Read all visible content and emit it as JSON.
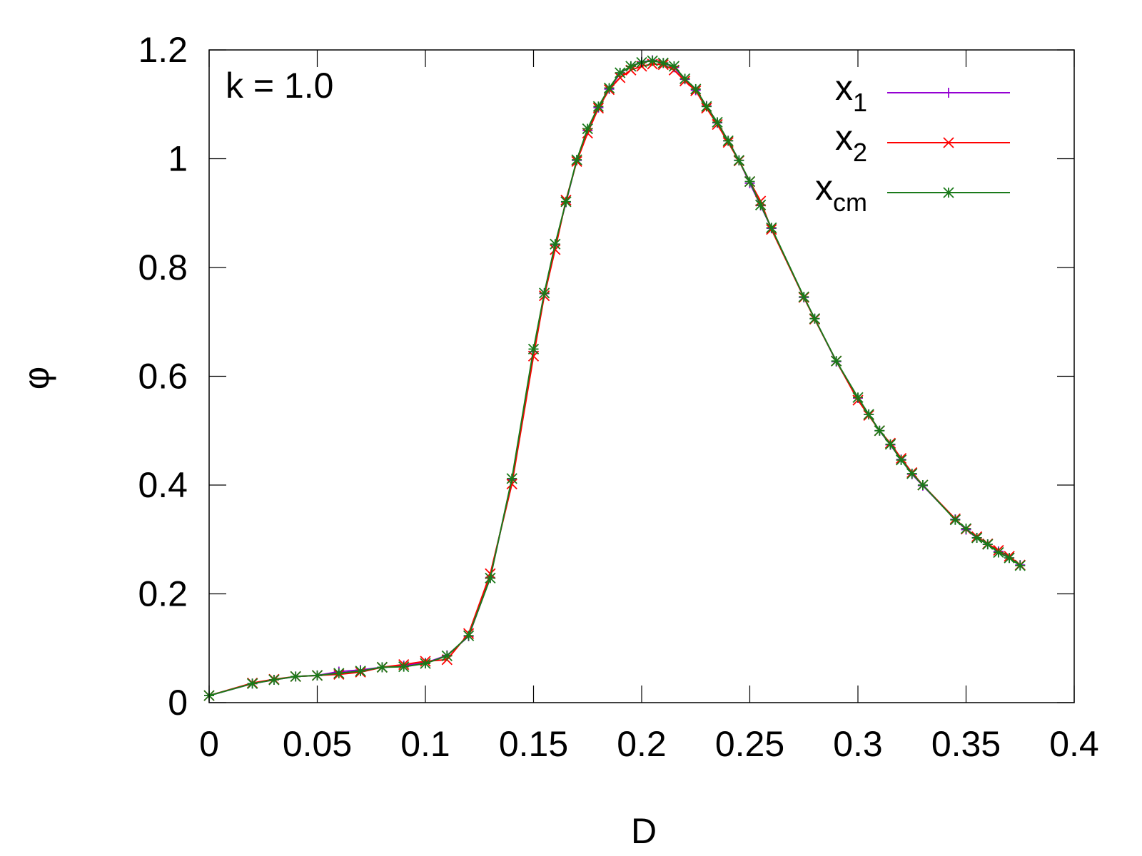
{
  "chart_data": {
    "type": "line",
    "xlabel": "D",
    "ylabel": "φ",
    "annotation": "k = 1.0",
    "xlim": [
      0,
      0.4
    ],
    "ylim": [
      0,
      1.2
    ],
    "xticks": [
      "0",
      "0.05",
      "0.1",
      "0.15",
      "0.2",
      "0.25",
      "0.3",
      "0.35",
      "0.4"
    ],
    "yticks": [
      "0",
      "0.2",
      "0.4",
      "0.6",
      "0.8",
      "1",
      "1.2"
    ],
    "grid": false,
    "legend_position": "top-right",
    "series": [
      {
        "name": "x",
        "subscript": "1",
        "color": "#9400d3",
        "marker": "plus",
        "x": [
          0.0,
          0.02,
          0.03,
          0.04,
          0.05,
          0.06,
          0.07,
          0.08,
          0.09,
          0.1,
          0.11,
          0.12,
          0.13,
          0.14,
          0.15,
          0.155,
          0.16,
          0.165,
          0.17,
          0.175,
          0.18,
          0.185,
          0.19,
          0.195,
          0.2,
          0.205,
          0.21,
          0.215,
          0.22,
          0.225,
          0.23,
          0.235,
          0.24,
          0.245,
          0.25,
          0.255,
          0.26,
          0.275,
          0.28,
          0.29,
          0.3,
          0.305,
          0.31,
          0.315,
          0.32,
          0.325,
          0.33,
          0.345,
          0.35,
          0.355,
          0.36,
          0.365,
          0.37,
          0.375
        ],
        "y": [
          0.013,
          0.035,
          0.042,
          0.048,
          0.05,
          0.057,
          0.06,
          0.065,
          0.068,
          0.073,
          0.087,
          0.122,
          0.23,
          0.41,
          0.645,
          0.752,
          0.842,
          0.92,
          0.997,
          1.052,
          1.094,
          1.128,
          1.157,
          1.17,
          1.178,
          1.181,
          1.176,
          1.168,
          1.146,
          1.126,
          1.097,
          1.066,
          1.033,
          0.997,
          0.955,
          0.914,
          0.872,
          0.745,
          0.706,
          0.627,
          0.56,
          0.53,
          0.5,
          0.474,
          0.447,
          0.42,
          0.399,
          0.337,
          0.318,
          0.303,
          0.291,
          0.278,
          0.266,
          0.253
        ]
      },
      {
        "name": "x",
        "subscript": "2",
        "color": "#ff0000",
        "marker": "cross",
        "x": [
          0.0,
          0.02,
          0.03,
          0.04,
          0.05,
          0.06,
          0.07,
          0.08,
          0.09,
          0.1,
          0.11,
          0.12,
          0.13,
          0.14,
          0.15,
          0.155,
          0.16,
          0.165,
          0.17,
          0.175,
          0.18,
          0.185,
          0.19,
          0.195,
          0.2,
          0.205,
          0.21,
          0.215,
          0.22,
          0.225,
          0.23,
          0.235,
          0.24,
          0.245,
          0.25,
          0.255,
          0.26,
          0.275,
          0.28,
          0.29,
          0.3,
          0.305,
          0.31,
          0.315,
          0.32,
          0.325,
          0.33,
          0.345,
          0.35,
          0.355,
          0.36,
          0.365,
          0.37,
          0.375
        ],
        "y": [
          0.013,
          0.036,
          0.043,
          0.048,
          0.05,
          0.052,
          0.056,
          0.065,
          0.07,
          0.076,
          0.079,
          0.127,
          0.237,
          0.402,
          0.637,
          0.748,
          0.833,
          0.924,
          0.995,
          1.047,
          1.093,
          1.127,
          1.149,
          1.163,
          1.17,
          1.174,
          1.173,
          1.163,
          1.143,
          1.125,
          1.093,
          1.063,
          1.03,
          0.996,
          0.958,
          0.922,
          0.87,
          0.745,
          0.705,
          0.628,
          0.556,
          0.528,
          0.5,
          0.477,
          0.449,
          0.423,
          0.4,
          0.338,
          0.319,
          0.305,
          0.292,
          0.28,
          0.269,
          0.253
        ]
      },
      {
        "name": "x",
        "subscript": "cm",
        "color": "#1a7a1a",
        "marker": "star",
        "x": [
          0.0,
          0.02,
          0.03,
          0.04,
          0.05,
          0.06,
          0.07,
          0.08,
          0.09,
          0.1,
          0.11,
          0.12,
          0.13,
          0.14,
          0.15,
          0.155,
          0.16,
          0.165,
          0.17,
          0.175,
          0.18,
          0.185,
          0.19,
          0.195,
          0.2,
          0.205,
          0.21,
          0.215,
          0.22,
          0.225,
          0.23,
          0.235,
          0.24,
          0.245,
          0.25,
          0.255,
          0.26,
          0.275,
          0.28,
          0.29,
          0.3,
          0.305,
          0.31,
          0.315,
          0.32,
          0.325,
          0.33,
          0.345,
          0.35,
          0.355,
          0.36,
          0.365,
          0.37,
          0.375
        ],
        "y": [
          0.013,
          0.035,
          0.042,
          0.048,
          0.05,
          0.054,
          0.058,
          0.065,
          0.066,
          0.072,
          0.086,
          0.123,
          0.229,
          0.412,
          0.65,
          0.753,
          0.843,
          0.921,
          0.998,
          1.055,
          1.096,
          1.13,
          1.158,
          1.17,
          1.177,
          1.18,
          1.176,
          1.17,
          1.147,
          1.128,
          1.096,
          1.067,
          1.033,
          0.997,
          0.958,
          0.915,
          0.873,
          0.746,
          0.706,
          0.628,
          0.561,
          0.53,
          0.5,
          0.475,
          0.446,
          0.421,
          0.4,
          0.336,
          0.32,
          0.303,
          0.291,
          0.276,
          0.266,
          0.252
        ]
      }
    ]
  }
}
